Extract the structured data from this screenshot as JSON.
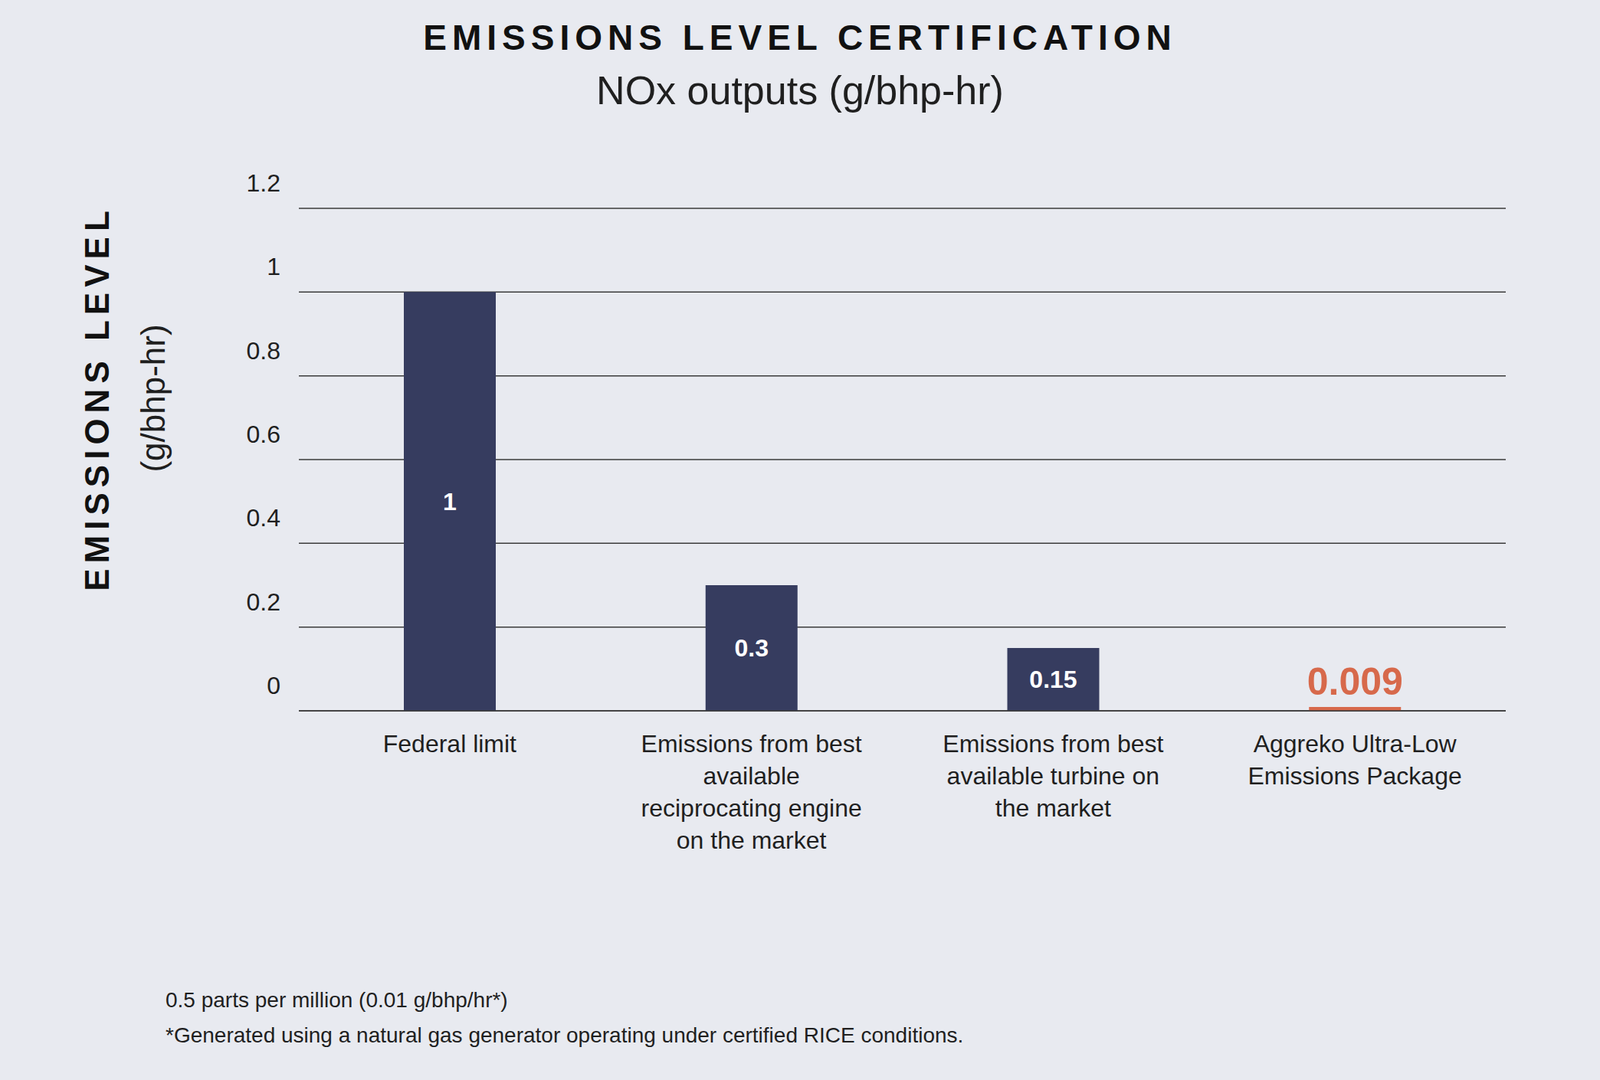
{
  "chart_data": {
    "type": "bar",
    "title": "EMISSIONS LEVEL CERTIFICATION",
    "subtitle": "NOx outputs (g/bhp-hr)",
    "y_label": [
      "EMISSIONS LEVEL",
      "(g/bhp-hr)"
    ],
    "categories": [
      "Federal limit",
      "Emissions from best available reciprocating engine on the market",
      "Emissions from best available turbine on the market",
      "Aggreko Ultra-Low Emissions Package"
    ],
    "values": [
      1,
      0.3,
      0.15,
      0.009
    ],
    "colors": [
      "#363c5f",
      "#363c5f",
      "#363c5f",
      "#d7694b"
    ],
    "ylim": [
      0,
      1.2
    ],
    "yticks": [
      0,
      0.2,
      0.4,
      0.6,
      0.8,
      1,
      1.2
    ],
    "grid": true,
    "data_labels": true,
    "notes": [
      "0.5 parts per million (0.01 g/bhp/hr*)",
      "*Generated using a natural gas generator operating under certified RICE conditions."
    ]
  }
}
